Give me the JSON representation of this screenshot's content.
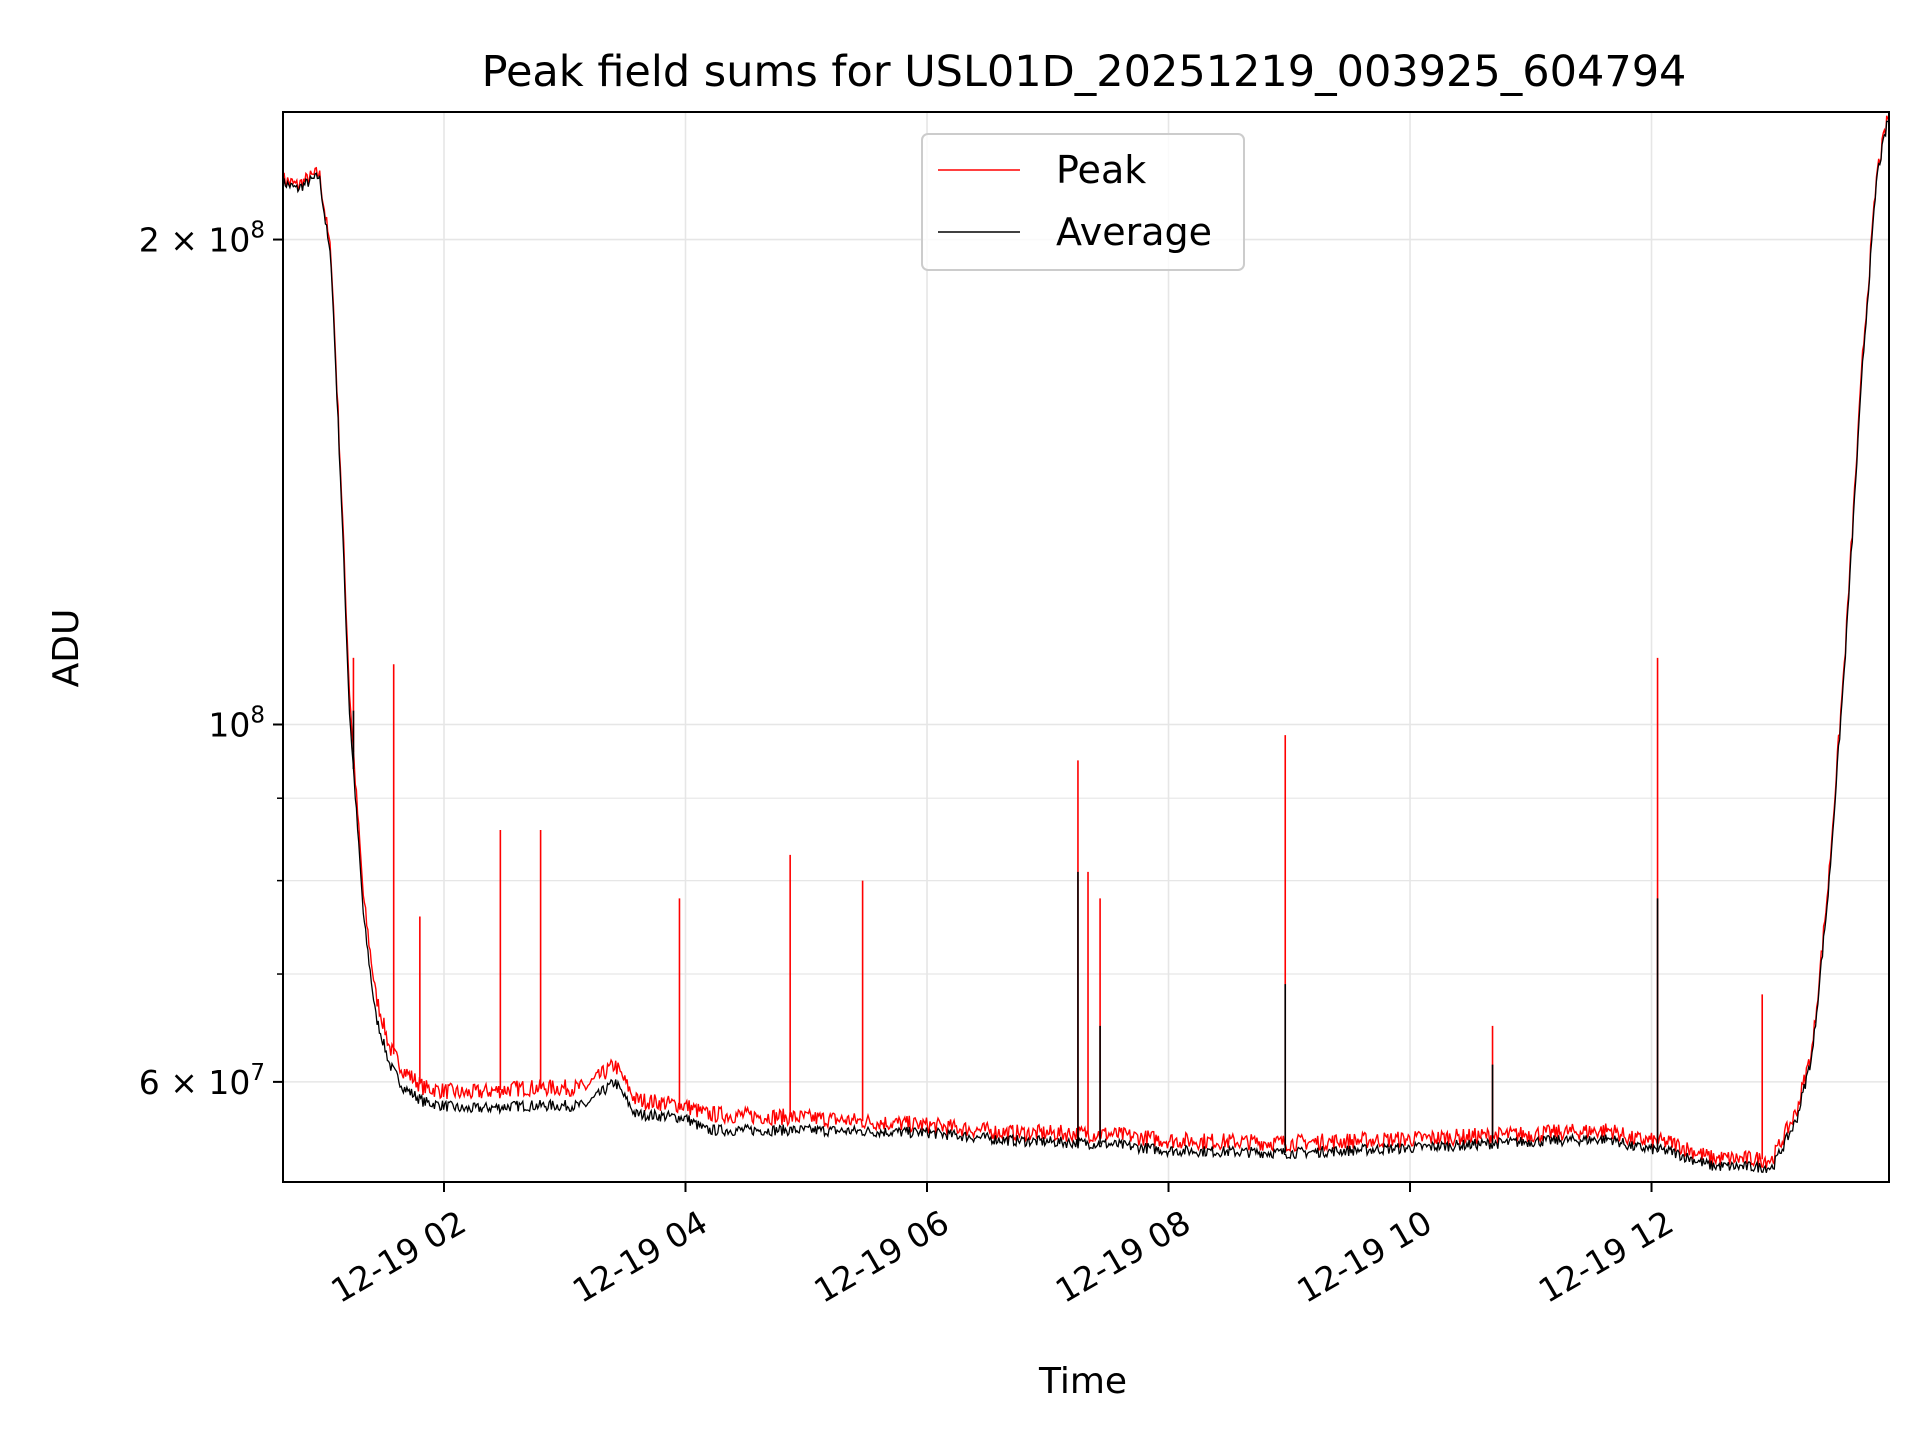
{
  "chart_data": {
    "type": "line",
    "title": "Peak field sums for USL01D_20251219_003925_604794",
    "xlabel": "Time",
    "ylabel": "ADU",
    "x_scale": "time",
    "y_scale": "log",
    "xlim": [
      "2025-12-19 00:40",
      "2025-12-19 13:58"
    ],
    "ylim": [
      52000000,
      240000000
    ],
    "grid": true,
    "legend_position": "top-center",
    "x_ticks": [
      {
        "value": "2025-12-19 02:00",
        "label": "12-19 02"
      },
      {
        "value": "2025-12-19 04:00",
        "label": "12-19 04"
      },
      {
        "value": "2025-12-19 06:00",
        "label": "12-19 06"
      },
      {
        "value": "2025-12-19 08:00",
        "label": "12-19 08"
      },
      {
        "value": "2025-12-19 10:00",
        "label": "12-19 10"
      },
      {
        "value": "2025-12-19 12:00",
        "label": "12-19 12"
      }
    ],
    "y_ticks_major": [
      {
        "value": 200000000,
        "label_base": "2 × 10",
        "label_exp": "8"
      },
      {
        "value": 100000000,
        "label_base": "10",
        "label_exp": "8"
      },
      {
        "value": 60000000,
        "label_base": "6 × 10",
        "label_exp": "7"
      }
    ],
    "y_ticks_minor": [
      70000000,
      80000000,
      90000000
    ],
    "series": [
      {
        "name": "Peak",
        "color": "#ff0000",
        "points": [
          [
            "2025-12-19 00:40",
            218000000
          ],
          [
            "2025-12-19 00:47",
            216000000
          ],
          [
            "2025-12-19 00:58",
            220000000
          ],
          [
            "2025-12-19 01:04",
            195000000
          ],
          [
            "2025-12-19 01:09",
            140000000
          ],
          [
            "2025-12-19 01:13",
            105000000
          ],
          [
            "2025-12-19 01:16",
            92000000
          ],
          [
            "2025-12-19 01:20",
            78000000
          ],
          [
            "2025-12-19 01:26",
            68000000
          ],
          [
            "2025-12-19 01:33",
            63000000
          ],
          [
            "2025-12-19 01:40",
            61000000
          ],
          [
            "2025-12-19 01:50",
            59500000
          ],
          [
            "2025-12-19 02:10",
            59000000
          ],
          [
            "2025-12-19 02:40",
            59500000
          ],
          [
            "2025-12-19 03:10",
            59500000
          ],
          [
            "2025-12-19 03:25",
            61500000
          ],
          [
            "2025-12-19 03:35",
            58500000
          ],
          [
            "2025-12-19 04:00",
            58000000
          ],
          [
            "2025-12-19 04:10",
            57300000
          ],
          [
            "2025-12-19 05:00",
            57000000
          ],
          [
            "2025-12-19 06:00",
            56400000
          ],
          [
            "2025-12-19 06:40",
            55800000
          ],
          [
            "2025-12-19 07:30",
            55700000
          ],
          [
            "2025-12-19 08:00",
            55200000
          ],
          [
            "2025-12-19 09:00",
            55000000
          ],
          [
            "2025-12-19 10:00",
            55300000
          ],
          [
            "2025-12-19 11:00",
            55700000
          ],
          [
            "2025-12-19 11:40",
            56000000
          ],
          [
            "2025-12-19 11:50",
            55300000
          ],
          [
            "2025-12-19 12:10",
            55000000
          ],
          [
            "2025-12-19 12:30",
            53800000
          ],
          [
            "2025-12-19 13:00",
            53700000
          ],
          [
            "2025-12-19 13:12",
            57500000
          ],
          [
            "2025-12-19 13:20",
            63000000
          ],
          [
            "2025-12-19 13:28",
            80000000
          ],
          [
            "2025-12-19 13:36",
            110000000
          ],
          [
            "2025-12-19 13:45",
            170000000
          ],
          [
            "2025-12-19 13:52",
            220000000
          ],
          [
            "2025-12-19 13:58",
            240000000
          ]
        ],
        "spikes": [
          [
            "2025-12-19 01:15",
            110000000
          ],
          [
            "2025-12-19 01:35",
            109000000
          ],
          [
            "2025-12-19 01:48",
            76000000
          ],
          [
            "2025-12-19 02:28",
            86000000
          ],
          [
            "2025-12-19 02:48",
            86000000
          ],
          [
            "2025-12-19 03:57",
            78000000
          ],
          [
            "2025-12-19 04:52",
            83000000
          ],
          [
            "2025-12-19 05:28",
            80000000
          ],
          [
            "2025-12-19 07:15",
            95000000
          ],
          [
            "2025-12-19 07:20",
            81000000
          ],
          [
            "2025-12-19 07:26",
            78000000
          ],
          [
            "2025-12-19 08:58",
            98500000
          ],
          [
            "2025-12-19 10:41",
            65000000
          ],
          [
            "2025-12-19 12:03",
            110000000
          ],
          [
            "2025-12-19 12:55",
            68000000
          ]
        ]
      },
      {
        "name": "Average",
        "color": "#000000",
        "points": [
          [
            "2025-12-19 00:40",
            217000000
          ],
          [
            "2025-12-19 00:47",
            215000000
          ],
          [
            "2025-12-19 00:58",
            219000000
          ],
          [
            "2025-12-19 01:04",
            193000000
          ],
          [
            "2025-12-19 01:09",
            138000000
          ],
          [
            "2025-12-19 01:13",
            102000000
          ],
          [
            "2025-12-19 01:16",
            90000000
          ],
          [
            "2025-12-19 01:20",
            76000000
          ],
          [
            "2025-12-19 01:26",
            66000000
          ],
          [
            "2025-12-19 01:33",
            61500000
          ],
          [
            "2025-12-19 01:40",
            59500000
          ],
          [
            "2025-12-19 01:50",
            58300000
          ],
          [
            "2025-12-19 02:10",
            57700000
          ],
          [
            "2025-12-19 02:40",
            58000000
          ],
          [
            "2025-12-19 03:10",
            58000000
          ],
          [
            "2025-12-19 03:25",
            60000000
          ],
          [
            "2025-12-19 03:35",
            57300000
          ],
          [
            "2025-12-19 04:00",
            57000000
          ],
          [
            "2025-12-19 04:10",
            56000000
          ],
          [
            "2025-12-19 05:00",
            56000000
          ],
          [
            "2025-12-19 06:00",
            55800000
          ],
          [
            "2025-12-19 06:40",
            55200000
          ],
          [
            "2025-12-19 07:30",
            54900000
          ],
          [
            "2025-12-19 08:00",
            54400000
          ],
          [
            "2025-12-19 09:00",
            54200000
          ],
          [
            "2025-12-19 10:00",
            54600000
          ],
          [
            "2025-12-19 11:00",
            55100000
          ],
          [
            "2025-12-19 11:40",
            55300000
          ],
          [
            "2025-12-19 11:50",
            54700000
          ],
          [
            "2025-12-19 12:10",
            54300000
          ],
          [
            "2025-12-19 12:30",
            53200000
          ],
          [
            "2025-12-19 13:00",
            53100000
          ],
          [
            "2025-12-19 13:12",
            56800000
          ],
          [
            "2025-12-19 13:20",
            62500000
          ],
          [
            "2025-12-19 13:28",
            79000000
          ],
          [
            "2025-12-19 13:36",
            109000000
          ],
          [
            "2025-12-19 13:45",
            168000000
          ],
          [
            "2025-12-19 13:52",
            219000000
          ],
          [
            "2025-12-19 13:58",
            239000000
          ]
        ],
        "spikes": [
          [
            "2025-12-19 01:15",
            102000000
          ],
          [
            "2025-12-19 07:15",
            81000000
          ],
          [
            "2025-12-19 07:26",
            65000000
          ],
          [
            "2025-12-19 08:58",
            69000000
          ],
          [
            "2025-12-19 10:41",
            61500000
          ],
          [
            "2025-12-19 12:03",
            78000000
          ]
        ]
      }
    ]
  }
}
